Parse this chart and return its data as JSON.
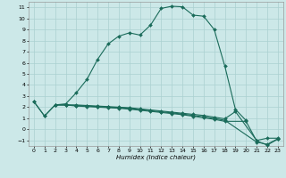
{
  "xlabel": "Humidex (Indice chaleur)",
  "bg_color": "#cce8e8",
  "grid_color": "#aad0d0",
  "line_color": "#1a6b5a",
  "xlim": [
    -0.5,
    23.5
  ],
  "ylim": [
    -1.5,
    11.5
  ],
  "xticks": [
    0,
    1,
    2,
    3,
    4,
    5,
    6,
    7,
    8,
    9,
    10,
    11,
    12,
    13,
    14,
    15,
    16,
    17,
    18,
    19,
    20,
    21,
    22,
    23
  ],
  "yticks": [
    -1,
    0,
    1,
    2,
    3,
    4,
    5,
    6,
    7,
    8,
    9,
    10,
    11
  ],
  "curves": [
    {
      "x": [
        0,
        1,
        2,
        3,
        4,
        5,
        6,
        7,
        8,
        9,
        10,
        11,
        12,
        13,
        14,
        15,
        16,
        17,
        18,
        19,
        20
      ],
      "y": [
        2.5,
        1.2,
        2.2,
        2.3,
        3.3,
        4.5,
        6.3,
        7.7,
        8.4,
        8.7,
        8.5,
        9.4,
        10.9,
        11.1,
        11.05,
        10.3,
        10.2,
        9.0,
        5.7,
        1.8,
        0.8
      ]
    },
    {
      "x": [
        0,
        1,
        2,
        3,
        4,
        5,
        6,
        7,
        8,
        9,
        10,
        11,
        12,
        13,
        14,
        15,
        16,
        17,
        18,
        19,
        21,
        22,
        23
      ],
      "y": [
        2.5,
        1.2,
        2.2,
        2.2,
        2.2,
        2.15,
        2.1,
        2.05,
        2.0,
        1.95,
        1.85,
        1.75,
        1.65,
        1.55,
        1.45,
        1.35,
        1.25,
        1.1,
        0.95,
        1.6,
        -1.0,
        -0.8,
        -0.8
      ]
    },
    {
      "x": [
        2,
        3,
        4,
        5,
        6,
        7,
        8,
        9,
        10,
        11,
        12,
        13,
        14,
        15,
        16,
        17,
        18,
        21,
        22,
        23
      ],
      "y": [
        2.2,
        2.2,
        2.15,
        2.1,
        2.05,
        2.0,
        1.95,
        1.88,
        1.78,
        1.68,
        1.58,
        1.48,
        1.38,
        1.25,
        1.12,
        0.98,
        0.82,
        -1.15,
        -1.35,
        -0.85
      ]
    },
    {
      "x": [
        2,
        3,
        4,
        5,
        6,
        7,
        8,
        9,
        10,
        11,
        12,
        13,
        14,
        15,
        16,
        17,
        18,
        20,
        21,
        22,
        23
      ],
      "y": [
        2.2,
        2.2,
        2.1,
        2.05,
        2.0,
        1.95,
        1.9,
        1.82,
        1.72,
        1.62,
        1.52,
        1.42,
        1.32,
        1.18,
        1.05,
        0.9,
        0.72,
        0.72,
        -1.05,
        -1.42,
        -0.88
      ]
    }
  ]
}
